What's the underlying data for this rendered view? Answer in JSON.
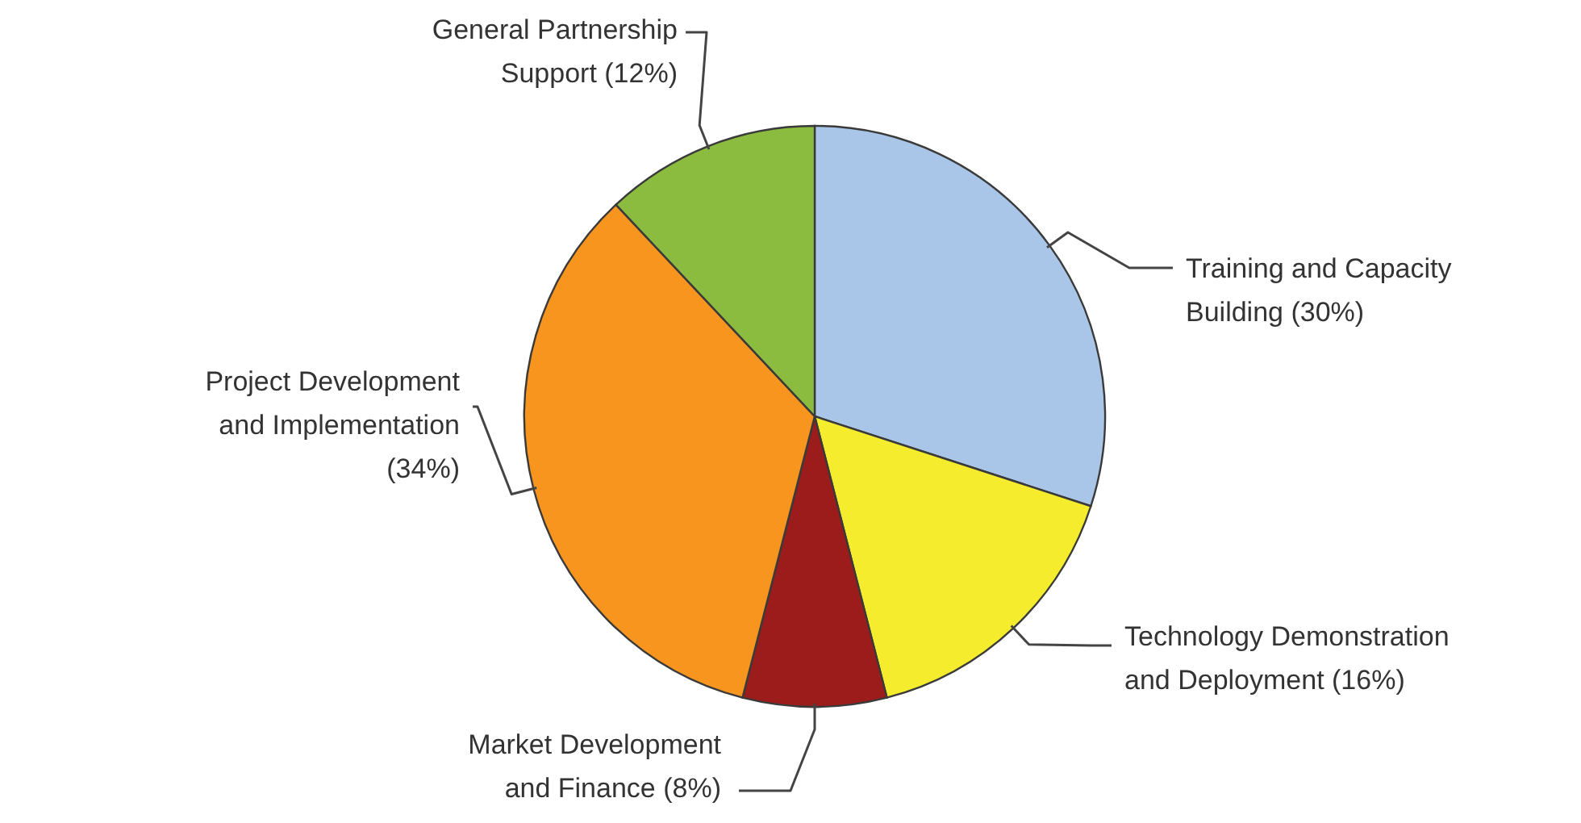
{
  "chart_data": {
    "type": "pie",
    "categories": [
      "Training and Capacity Building (30%)",
      "Technology Demonstration and Deployment (16%)",
      "Market Development and Finance (8%)",
      "Project Development and Implementation (34%)",
      "General Partnership Support (12%)"
    ],
    "values": [
      30,
      16,
      8,
      34,
      12
    ],
    "colors": [
      "#a9c5e8",
      "#f4ec2c",
      "#9c1c1c",
      "#f7951e",
      "#8cbc3f"
    ]
  }
}
